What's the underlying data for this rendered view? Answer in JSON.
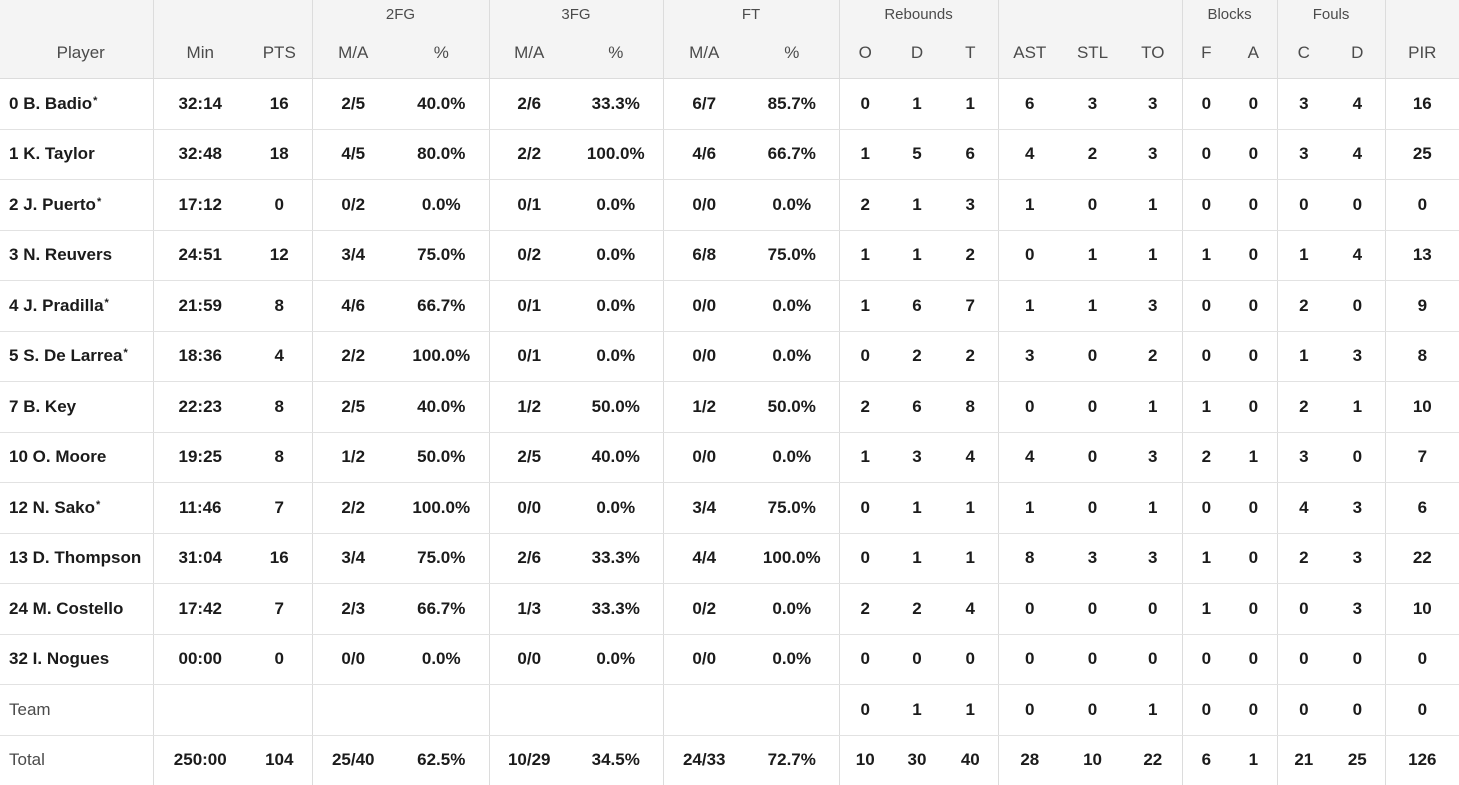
{
  "header": {
    "groups": {
      "fg2": "2FG",
      "fg3": "3FG",
      "ft": "FT",
      "rebounds": "Rebounds",
      "blocks": "Blocks",
      "fouls": "Fouls"
    },
    "columns": {
      "player": "Player",
      "min": "Min",
      "pts": "PTS",
      "fg2_ma": "M/A",
      "fg2_pct": "%",
      "fg3_ma": "M/A",
      "fg3_pct": "%",
      "ft_ma": "M/A",
      "ft_pct": "%",
      "reb_o": "O",
      "reb_d": "D",
      "reb_t": "T",
      "ast": "AST",
      "stl": "STL",
      "to": "TO",
      "blk_f": "F",
      "blk_a": "A",
      "foul_c": "C",
      "foul_d": "D",
      "pir": "PIR"
    }
  },
  "rows": [
    {
      "number": "0",
      "name": "B. Badio",
      "starter": true,
      "min": "32:14",
      "pts": "16",
      "fg2_ma": "2/5",
      "fg2_pct": "40.0%",
      "fg3_ma": "2/6",
      "fg3_pct": "33.3%",
      "ft_ma": "6/7",
      "ft_pct": "85.7%",
      "reb_o": "0",
      "reb_d": "1",
      "reb_t": "1",
      "ast": "6",
      "stl": "3",
      "to": "3",
      "blk_f": "0",
      "blk_a": "0",
      "foul_c": "3",
      "foul_d": "4",
      "pir": "16"
    },
    {
      "number": "1",
      "name": "K. Taylor",
      "starter": false,
      "min": "32:48",
      "pts": "18",
      "fg2_ma": "4/5",
      "fg2_pct": "80.0%",
      "fg3_ma": "2/2",
      "fg3_pct": "100.0%",
      "ft_ma": "4/6",
      "ft_pct": "66.7%",
      "reb_o": "1",
      "reb_d": "5",
      "reb_t": "6",
      "ast": "4",
      "stl": "2",
      "to": "3",
      "blk_f": "0",
      "blk_a": "0",
      "foul_c": "3",
      "foul_d": "4",
      "pir": "25"
    },
    {
      "number": "2",
      "name": "J. Puerto",
      "starter": true,
      "min": "17:12",
      "pts": "0",
      "fg2_ma": "0/2",
      "fg2_pct": "0.0%",
      "fg3_ma": "0/1",
      "fg3_pct": "0.0%",
      "ft_ma": "0/0",
      "ft_pct": "0.0%",
      "reb_o": "2",
      "reb_d": "1",
      "reb_t": "3",
      "ast": "1",
      "stl": "0",
      "to": "1",
      "blk_f": "0",
      "blk_a": "0",
      "foul_c": "0",
      "foul_d": "0",
      "pir": "0"
    },
    {
      "number": "3",
      "name": "N. Reuvers",
      "starter": false,
      "min": "24:51",
      "pts": "12",
      "fg2_ma": "3/4",
      "fg2_pct": "75.0%",
      "fg3_ma": "0/2",
      "fg3_pct": "0.0%",
      "ft_ma": "6/8",
      "ft_pct": "75.0%",
      "reb_o": "1",
      "reb_d": "1",
      "reb_t": "2",
      "ast": "0",
      "stl": "1",
      "to": "1",
      "blk_f": "1",
      "blk_a": "0",
      "foul_c": "1",
      "foul_d": "4",
      "pir": "13"
    },
    {
      "number": "4",
      "name": "J. Pradilla",
      "starter": true,
      "min": "21:59",
      "pts": "8",
      "fg2_ma": "4/6",
      "fg2_pct": "66.7%",
      "fg3_ma": "0/1",
      "fg3_pct": "0.0%",
      "ft_ma": "0/0",
      "ft_pct": "0.0%",
      "reb_o": "1",
      "reb_d": "6",
      "reb_t": "7",
      "ast": "1",
      "stl": "1",
      "to": "3",
      "blk_f": "0",
      "blk_a": "0",
      "foul_c": "2",
      "foul_d": "0",
      "pir": "9"
    },
    {
      "number": "5",
      "name": "S. De Larrea",
      "starter": true,
      "min": "18:36",
      "pts": "4",
      "fg2_ma": "2/2",
      "fg2_pct": "100.0%",
      "fg3_ma": "0/1",
      "fg3_pct": "0.0%",
      "ft_ma": "0/0",
      "ft_pct": "0.0%",
      "reb_o": "0",
      "reb_d": "2",
      "reb_t": "2",
      "ast": "3",
      "stl": "0",
      "to": "2",
      "blk_f": "0",
      "blk_a": "0",
      "foul_c": "1",
      "foul_d": "3",
      "pir": "8"
    },
    {
      "number": "7",
      "name": "B. Key",
      "starter": false,
      "min": "22:23",
      "pts": "8",
      "fg2_ma": "2/5",
      "fg2_pct": "40.0%",
      "fg3_ma": "1/2",
      "fg3_pct": "50.0%",
      "ft_ma": "1/2",
      "ft_pct": "50.0%",
      "reb_o": "2",
      "reb_d": "6",
      "reb_t": "8",
      "ast": "0",
      "stl": "0",
      "to": "1",
      "blk_f": "1",
      "blk_a": "0",
      "foul_c": "2",
      "foul_d": "1",
      "pir": "10"
    },
    {
      "number": "10",
      "name": "O. Moore",
      "starter": false,
      "min": "19:25",
      "pts": "8",
      "fg2_ma": "1/2",
      "fg2_pct": "50.0%",
      "fg3_ma": "2/5",
      "fg3_pct": "40.0%",
      "ft_ma": "0/0",
      "ft_pct": "0.0%",
      "reb_o": "1",
      "reb_d": "3",
      "reb_t": "4",
      "ast": "4",
      "stl": "0",
      "to": "3",
      "blk_f": "2",
      "blk_a": "1",
      "foul_c": "3",
      "foul_d": "0",
      "pir": "7"
    },
    {
      "number": "12",
      "name": "N. Sako",
      "starter": true,
      "min": "11:46",
      "pts": "7",
      "fg2_ma": "2/2",
      "fg2_pct": "100.0%",
      "fg3_ma": "0/0",
      "fg3_pct": "0.0%",
      "ft_ma": "3/4",
      "ft_pct": "75.0%",
      "reb_o": "0",
      "reb_d": "1",
      "reb_t": "1",
      "ast": "1",
      "stl": "0",
      "to": "1",
      "blk_f": "0",
      "blk_a": "0",
      "foul_c": "4",
      "foul_d": "3",
      "pir": "6"
    },
    {
      "number": "13",
      "name": "D. Thompson",
      "starter": false,
      "min": "31:04",
      "pts": "16",
      "fg2_ma": "3/4",
      "fg2_pct": "75.0%",
      "fg3_ma": "2/6",
      "fg3_pct": "33.3%",
      "ft_ma": "4/4",
      "ft_pct": "100.0%",
      "reb_o": "0",
      "reb_d": "1",
      "reb_t": "1",
      "ast": "8",
      "stl": "3",
      "to": "3",
      "blk_f": "1",
      "blk_a": "0",
      "foul_c": "2",
      "foul_d": "3",
      "pir": "22"
    },
    {
      "number": "24",
      "name": "M. Costello",
      "starter": false,
      "min": "17:42",
      "pts": "7",
      "fg2_ma": "2/3",
      "fg2_pct": "66.7%",
      "fg3_ma": "1/3",
      "fg3_pct": "33.3%",
      "ft_ma": "0/2",
      "ft_pct": "0.0%",
      "reb_o": "2",
      "reb_d": "2",
      "reb_t": "4",
      "ast": "0",
      "stl": "0",
      "to": "0",
      "blk_f": "1",
      "blk_a": "0",
      "foul_c": "0",
      "foul_d": "3",
      "pir": "10"
    },
    {
      "number": "32",
      "name": "I. Nogues",
      "starter": false,
      "min": "00:00",
      "pts": "0",
      "fg2_ma": "0/0",
      "fg2_pct": "0.0%",
      "fg3_ma": "0/0",
      "fg3_pct": "0.0%",
      "ft_ma": "0/0",
      "ft_pct": "0.0%",
      "reb_o": "0",
      "reb_d": "0",
      "reb_t": "0",
      "ast": "0",
      "stl": "0",
      "to": "0",
      "blk_f": "0",
      "blk_a": "0",
      "foul_c": "0",
      "foul_d": "0",
      "pir": "0"
    }
  ],
  "team": {
    "label": "Team",
    "min": "",
    "pts": "",
    "fg2_ma": "",
    "fg2_pct": "",
    "fg3_ma": "",
    "fg3_pct": "",
    "ft_ma": "",
    "ft_pct": "",
    "reb_o": "0",
    "reb_d": "1",
    "reb_t": "1",
    "ast": "0",
    "stl": "0",
    "to": "1",
    "blk_f": "0",
    "blk_a": "0",
    "foul_c": "0",
    "foul_d": "0",
    "pir": "0"
  },
  "total": {
    "label": "Total",
    "min": "250:00",
    "pts": "104",
    "fg2_ma": "25/40",
    "fg2_pct": "62.5%",
    "fg3_ma": "10/29",
    "fg3_pct": "34.5%",
    "ft_ma": "24/33",
    "ft_pct": "72.7%",
    "reb_o": "10",
    "reb_d": "30",
    "reb_t": "40",
    "ast": "28",
    "stl": "10",
    "to": "22",
    "blk_f": "6",
    "blk_a": "1",
    "foul_c": "21",
    "foul_d": "25",
    "pir": "126"
  },
  "starter_marker": "*",
  "colors": {
    "header_bg": "#f4f4f4",
    "divider": "#dcdcdc",
    "row_border": "#e2e2e2",
    "text_bold": "#1b1b1b",
    "text_muted": "#4b4b4b"
  }
}
